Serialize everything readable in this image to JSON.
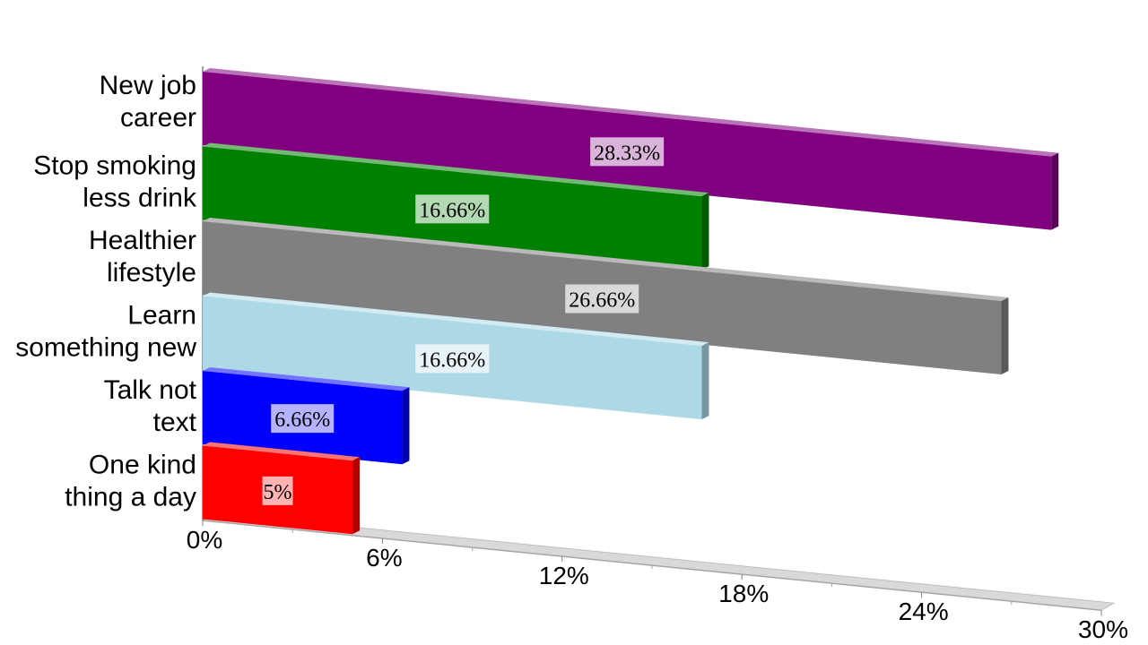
{
  "chart_data": {
    "type": "bar",
    "orientation": "horizontal",
    "title": "",
    "xlabel": "",
    "ylabel": "",
    "xlim": [
      0,
      30
    ],
    "ticks": [
      "0%",
      "6%",
      "12%",
      "18%",
      "24%",
      "30%"
    ],
    "tick_values": [
      0,
      6,
      12,
      18,
      24,
      30
    ],
    "categories": [
      [
        "New job",
        "career"
      ],
      [
        "Stop smoking",
        "less drink"
      ],
      [
        "Healthier",
        "lifestyle"
      ],
      [
        "Learn",
        "something new"
      ],
      [
        "Talk not",
        "text"
      ],
      [
        "One kind",
        "thing a day"
      ]
    ],
    "values": [
      28.33,
      16.66,
      26.66,
      16.66,
      6.66,
      5
    ],
    "data_labels": [
      "28.33%",
      "16.66%",
      "26.66%",
      "16.66%",
      "6.66%",
      "5%"
    ],
    "colors": [
      "#800080",
      "#008000",
      "#808080",
      "#add8e6",
      "#0000ff",
      "#ff0000"
    ],
    "grid": false,
    "legend": "none"
  }
}
